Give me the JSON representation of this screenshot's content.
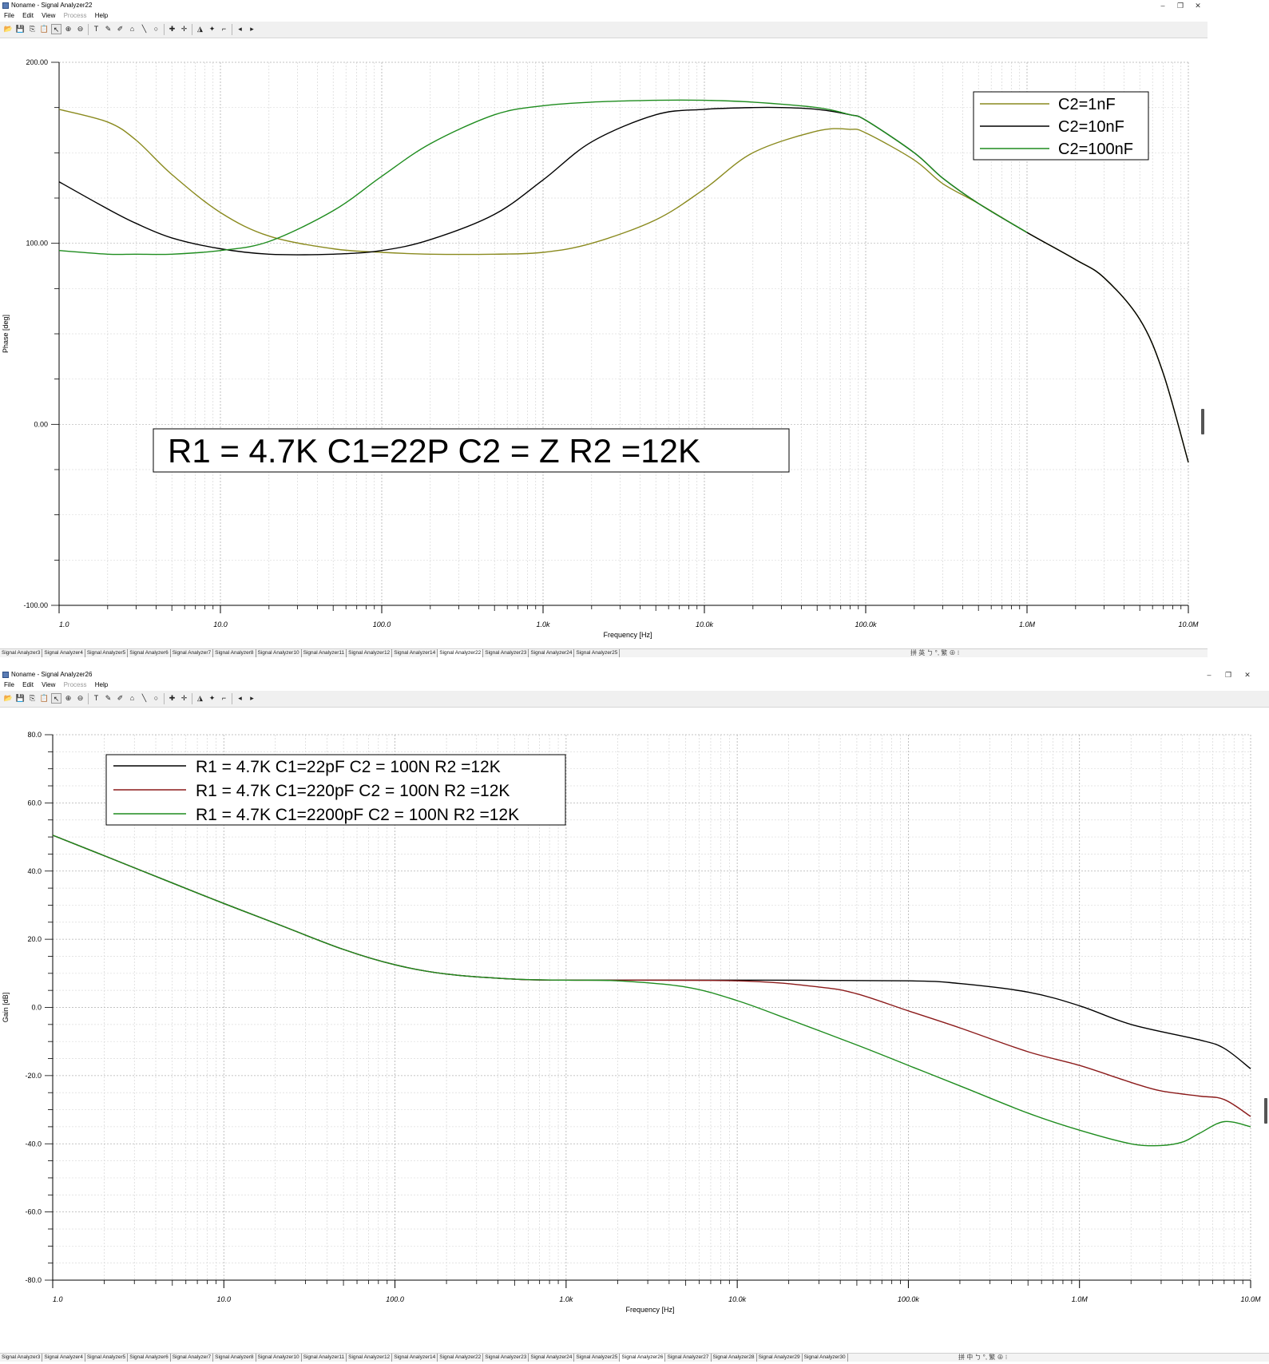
{
  "windows": [
    {
      "title": "Noname - Signal Analyzer22",
      "menu": [
        "File",
        "Edit",
        "View",
        "Process",
        "Help"
      ],
      "menu_disabled": [
        "Process"
      ],
      "tabs": [
        "Signal Analyzer3",
        "Signal Analyzer4",
        "Signal Analyzer5",
        "Signal Analyzer6",
        "Signal Analyzer7",
        "Signal Analyzer8",
        "Signal Analyzer10",
        "Signal Analyzer11",
        "Signal Analyzer12",
        "Signal Analyzer14",
        "Signal Analyzer22",
        "Signal Analyzer23",
        "Signal Analyzer24",
        "Signal Analyzer25"
      ],
      "active_tab": "Signal Analyzer22",
      "ime_text": "拼 英 ㄅ °, 繁 ⊕ ⁝"
    },
    {
      "title": "Noname - Signal Analyzer26",
      "menu": [
        "File",
        "Edit",
        "View",
        "Process",
        "Help"
      ],
      "menu_disabled": [
        "Process"
      ],
      "tabs": [
        "Signal Analyzer3",
        "Signal Analyzer4",
        "Signal Analyzer5",
        "Signal Analyzer6",
        "Signal Analyzer7",
        "Signal Analyzer8",
        "Signal Analyzer10",
        "Signal Analyzer11",
        "Signal Analyzer12",
        "Signal Analyzer14",
        "Signal Analyzer22",
        "Signal Analyzer23",
        "Signal Analyzer24",
        "Signal Analyzer25",
        "Signal Analyzer26",
        "Signal Analyzer27",
        "Signal Analyzer28",
        "Signal Analyzer29",
        "Signal Analyzer30"
      ],
      "active_tab": "Signal Analyzer26",
      "ime_text": "拼 中 ㄅ °, 繁 ⊕ ⁝"
    }
  ],
  "toolbar_icons": [
    "open-icon",
    "save-icon",
    "copy-icon",
    "paste-icon",
    "pointer-icon",
    "zoom-in-icon",
    "zoom-out-icon",
    "text-icon",
    "pen-icon",
    "pen-edit-icon",
    "home-icon",
    "line-icon",
    "circle-icon",
    "cursor-a-icon",
    "cursor-b-icon",
    "marker-icon",
    "marker2-icon",
    "arrow-icon",
    "prev-icon",
    "next-icon"
  ],
  "colors": {
    "olive": "#8a8a1e",
    "black": "#000000",
    "green": "#1e8c1e",
    "darkred": "#8b1a1a",
    "grid": "#c8c8c8"
  },
  "chart_data": [
    {
      "type": "line",
      "xscale": "log",
      "xlim": [
        1,
        10000000
      ],
      "ylim": [
        -100,
        200
      ],
      "xlabel": "Frequency [Hz]",
      "ylabel": "Phase [deg]",
      "xticks": [
        "1.0",
        "10.0",
        "100.0",
        "1.0k",
        "10.0k",
        "100.0k",
        "1.0M",
        "10.0M"
      ],
      "yticks": [
        "200.00",
        "100.00",
        "0.00",
        "-100.00"
      ],
      "yvals": [
        200,
        100,
        0,
        -100
      ],
      "legend_placement": "top-right",
      "annotation": "R1 = 4.7K C1=22P C2 = Z R2  =12K",
      "series": [
        {
          "name": "C2=1nF",
          "color": "#8a8a1e",
          "x": [
            1,
            2,
            3,
            5,
            10,
            20,
            50,
            100,
            200,
            500,
            1000,
            2000,
            5000,
            10000,
            20000,
            50000,
            80000,
            100000,
            200000,
            300000,
            500000,
            1000000,
            2000000,
            3000000,
            5000000,
            7000000,
            10000000
          ],
          "y": [
            174,
            167,
            157,
            138,
            117,
            104,
            97,
            95,
            94,
            94,
            95,
            100,
            113,
            130,
            150,
            162,
            163,
            161,
            146,
            133,
            122,
            106,
            91,
            81,
            58,
            28,
            -21
          ]
        },
        {
          "name": "C2=10nF",
          "color": "#000000",
          "x": [
            1,
            2,
            3,
            5,
            10,
            20,
            50,
            100,
            200,
            500,
            1000,
            2000,
            5000,
            10000,
            20000,
            30000,
            50000,
            80000,
            100000,
            200000,
            300000,
            500000,
            1000000,
            2000000,
            3000000,
            5000000,
            7000000,
            10000000
          ],
          "y": [
            134,
            119,
            111,
            103,
            97,
            94,
            94,
            96,
            102,
            116,
            135,
            156,
            171,
            174,
            175,
            175,
            174,
            171,
            168,
            150,
            136,
            122,
            106,
            91,
            81,
            58,
            28,
            -21
          ]
        },
        {
          "name": "C2=100nF",
          "color": "#1e8c1e",
          "x": [
            1,
            2,
            3,
            5,
            10,
            20,
            50,
            100,
            200,
            500,
            1000,
            2000,
            5000,
            10000,
            20000,
            50000,
            80000,
            100000,
            200000,
            300000,
            500000,
            1000000
          ],
          "y": [
            96,
            94,
            94,
            94,
            96,
            101,
            118,
            137,
            155,
            171,
            176,
            178,
            179,
            179,
            178,
            175,
            171,
            168,
            150,
            136,
            122,
            106
          ]
        }
      ]
    },
    {
      "type": "line",
      "xscale": "log",
      "xlim": [
        1,
        10000000
      ],
      "ylim": [
        -80,
        80
      ],
      "xlabel": "Frequency [Hz]",
      "ylabel": "Gain [dB]",
      "xticks": [
        "1.0",
        "10.0",
        "100.0",
        "1.0k",
        "10.0k",
        "100.0k",
        "1.0M",
        "10.0M"
      ],
      "yticks": [
        "80.0",
        "60.0",
        "40.0",
        "20.0",
        "0.0",
        "-20.0",
        "-40.0",
        "-60.0",
        "-80.0"
      ],
      "yvals": [
        80,
        60,
        40,
        20,
        0,
        -20,
        -40,
        -60,
        -80
      ],
      "legend_placement": "top-left",
      "series": [
        {
          "name": "R1 = 4.7K C1=22pF     C2 = 100N R2  =12K",
          "color": "#000000",
          "x": [
            1,
            2,
            5,
            10,
            20,
            50,
            100,
            200,
            500,
            1000,
            10000,
            100000,
            200000,
            500000,
            1000000,
            2000000,
            5000000,
            7000000,
            10000000
          ],
          "y": [
            50.5,
            44.5,
            36.5,
            30.5,
            24.7,
            17,
            12.5,
            9.8,
            8.3,
            8,
            8,
            7.8,
            7,
            4.5,
            0.5,
            -5,
            -9.5,
            -12,
            -18
          ]
        },
        {
          "name": "R1 = 4.7K C1=220pF    C2 = 100N R2  =12K",
          "color": "#8b1a1a",
          "x": [
            1,
            2,
            5,
            10,
            20,
            50,
            100,
            200,
            500,
            1000,
            10000,
            30000,
            50000,
            100000,
            200000,
            500000,
            1000000,
            2000000,
            3000000,
            5000000,
            7000000,
            10000000
          ],
          "y": [
            50.5,
            44.5,
            36.5,
            30.5,
            24.7,
            17,
            12.5,
            9.8,
            8.3,
            8,
            7.8,
            6,
            4,
            -1,
            -6,
            -13,
            -17,
            -22,
            -24.5,
            -26,
            -27,
            -32
          ]
        },
        {
          "name": "R1 = 4.7K C1=2200pF C2 = 100N R2  =12K",
          "color": "#1e8c1e",
          "x": [
            1,
            2,
            5,
            10,
            20,
            50,
            100,
            200,
            500,
            1000,
            2000,
            5000,
            10000,
            20000,
            50000,
            100000,
            200000,
            500000,
            1000000,
            2000000,
            3000000,
            4000000,
            5000000,
            7000000,
            10000000
          ],
          "y": [
            50.5,
            44.5,
            36.5,
            30.5,
            24.7,
            17,
            12.5,
            9.8,
            8.3,
            8,
            7.8,
            6,
            2,
            -3.5,
            -11,
            -17,
            -23,
            -31,
            -36,
            -40,
            -40.5,
            -39.5,
            -37,
            -33.5,
            -35
          ]
        }
      ]
    }
  ]
}
